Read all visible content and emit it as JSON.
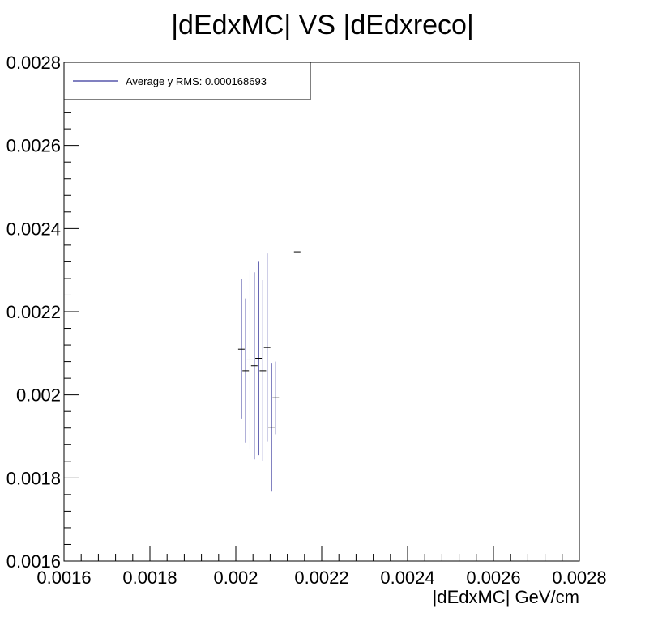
{
  "chart_data": {
    "type": "scatter",
    "title": "|dEdxMC| VS |dEdxreco|",
    "xlabel": "|dEdxMC| GeV/cm",
    "ylabel": "",
    "xlim": [
      0.0016,
      0.0028
    ],
    "ylim": [
      0.0016,
      0.0028
    ],
    "x_ticks": [
      "0.0016",
      "0.0018",
      "0.002",
      "0.0022",
      "0.0024",
      "0.0026",
      "0.0028"
    ],
    "y_ticks": [
      "0.0016",
      "0.0018",
      "0.002",
      "0.0022",
      "0.0024",
      "0.0026",
      "0.0028"
    ],
    "grid": false,
    "legend": {
      "position": "top-left",
      "entries": [
        "Average y RMS: 0.000168693"
      ]
    },
    "colors": {
      "series": "#000080",
      "axis": "#000000"
    },
    "points": [
      {
        "x": 0.002013,
        "y": 0.00211,
        "y_low": 0.001943,
        "y_high": 0.002278
      },
      {
        "x": 0.002023,
        "y": 0.002058,
        "y_low": 0.001885,
        "y_high": 0.002232
      },
      {
        "x": 0.002033,
        "y": 0.002086,
        "y_low": 0.00187,
        "y_high": 0.002302
      },
      {
        "x": 0.002043,
        "y": 0.00207,
        "y_low": 0.001845,
        "y_high": 0.002295
      },
      {
        "x": 0.002053,
        "y": 0.002088,
        "y_low": 0.001855,
        "y_high": 0.00232
      },
      {
        "x": 0.002063,
        "y": 0.002058,
        "y_low": 0.00184,
        "y_high": 0.002276
      },
      {
        "x": 0.002073,
        "y": 0.002114,
        "y_low": 0.001887,
        "y_high": 0.00234
      },
      {
        "x": 0.002083,
        "y": 0.001922,
        "y_low": 0.001767,
        "y_high": 0.002077
      },
      {
        "x": 0.002093,
        "y": 0.001993,
        "y_low": 0.001905,
        "y_high": 0.00208
      },
      {
        "x": 0.002143,
        "y": 0.002344,
        "y_low": 0.002344,
        "y_high": 0.002344
      }
    ]
  }
}
